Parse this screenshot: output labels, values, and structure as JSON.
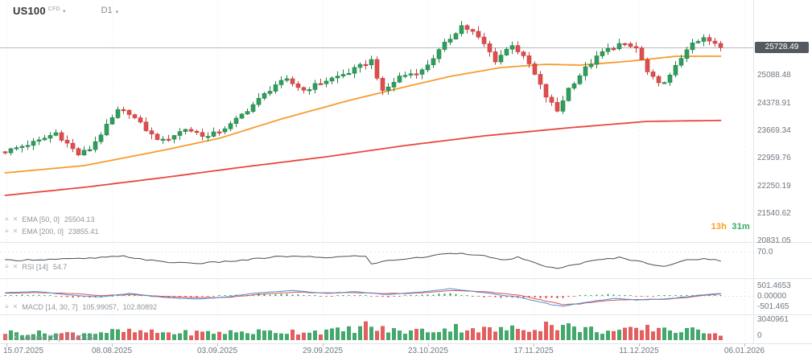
{
  "header": {
    "symbol": "US100",
    "instrument_type": "CFD",
    "timeframe": "D1"
  },
  "price_axis": {
    "current": "25728.49",
    "labels": [
      "25088.48",
      "24378.91",
      "23669.34",
      "22959.76",
      "22250.19",
      "21540.62",
      "20831.05"
    ]
  },
  "panels": {
    "rsi_axis_top": "70.0",
    "macd_axis": [
      "501.4653",
      "0.00000",
      "-501.465"
    ],
    "volume_axis": [
      "3040961",
      "0"
    ]
  },
  "indicator_labels": {
    "ema50": {
      "name": "EMA [50, 0]",
      "value": "25504.13"
    },
    "ema200": {
      "name": "EMA [200, 0]",
      "value": "23855.41"
    },
    "rsi": {
      "name": "RSI [14]",
      "value": "54.7"
    },
    "macd": {
      "name": "MACD [14, 30, 7]",
      "value": "105.99057,  102.80892"
    },
    "volume": {
      "name": "Volume [20]",
      "value": "3 040 961"
    }
  },
  "countdown": {
    "hours": "13h",
    "minutes": "31m"
  },
  "time_axis": [
    "15.07.2025",
    "08.08.2025",
    "03.09.2025",
    "29.09.2025",
    "23.10.2025",
    "17.11.2025",
    "11.12.2025",
    "06.01.2026"
  ],
  "colors": {
    "bull": "#2f9e5c",
    "bull_stroke": "#23824a",
    "bear": "#e04d4d",
    "bear_stroke": "#c03e3e",
    "ema50": "#f79b2e",
    "ema200": "#e8483f",
    "rsi": "#4b4f54",
    "macd_line": "#4f8fd4",
    "macd_signal": "#d9544f",
    "price_line": "#b4b9bd",
    "badge_bg": "#54595f",
    "countdown_h": "#f7a21a",
    "countdown_m": "#36a966",
    "separator": "#e2e5e8",
    "grid": "#f0f2f4",
    "axis_text": "#6f7780"
  },
  "chart_data": {
    "type": "candlestick",
    "symbol": "US100",
    "timeframe": "D1",
    "title": "US100 CFD, D1",
    "bars": 128,
    "current_price": 25728.49,
    "price_axis_values": [
      25728.49,
      25088.48,
      24378.91,
      23669.34,
      22959.76,
      22250.19,
      21540.62,
      20831.05
    ],
    "x_tick_labels": [
      "15.07.2025",
      "08.08.2025",
      "03.09.2025",
      "29.09.2025",
      "23.10.2025",
      "17.11.2025",
      "11.12.2025",
      "06.01.2026"
    ],
    "close_anchors": [
      [
        0,
        23060
      ],
      [
        6,
        23330
      ],
      [
        9,
        23540
      ],
      [
        13,
        22980
      ],
      [
        15,
        23125
      ],
      [
        20,
        24096
      ],
      [
        22,
        24055
      ],
      [
        26,
        23476
      ],
      [
        28,
        23331
      ],
      [
        32,
        23641
      ],
      [
        36,
        23434
      ],
      [
        40,
        23744
      ],
      [
        44,
        24261
      ],
      [
        48,
        24778
      ],
      [
        50,
        24881
      ],
      [
        53,
        24633
      ],
      [
        57,
        24881
      ],
      [
        61,
        25088
      ],
      [
        65,
        25398
      ],
      [
        67,
        24571
      ],
      [
        70,
        24985
      ],
      [
        74,
        25129
      ],
      [
        78,
        25811
      ],
      [
        81,
        26286
      ],
      [
        83,
        26121
      ],
      [
        85,
        25811
      ],
      [
        87,
        25398
      ],
      [
        90,
        25811
      ],
      [
        93,
        25294
      ],
      [
        96,
        24468
      ],
      [
        98,
        24096
      ],
      [
        100,
        24674
      ],
      [
        103,
        25191
      ],
      [
        106,
        25604
      ],
      [
        109,
        25811
      ],
      [
        112,
        25708
      ],
      [
        114,
        25088
      ],
      [
        116,
        24778
      ],
      [
        118,
        24985
      ],
      [
        121,
        25708
      ],
      [
        124,
        25956
      ],
      [
        127,
        25728.49
      ]
    ],
    "ema50_anchors": [
      [
        0,
        22510
      ],
      [
        14,
        22696
      ],
      [
        28,
        23088
      ],
      [
        38,
        23397
      ],
      [
        49,
        23892
      ],
      [
        61,
        24367
      ],
      [
        71,
        24718
      ],
      [
        79,
        24986
      ],
      [
        88,
        25213
      ],
      [
        96,
        25295
      ],
      [
        102,
        25275
      ],
      [
        111,
        25378
      ],
      [
        119,
        25501
      ],
      [
        127,
        25504.13
      ]
    ],
    "ema200_anchors": [
      [
        0,
        21933
      ],
      [
        14,
        22139
      ],
      [
        28,
        22387
      ],
      [
        42,
        22655
      ],
      [
        57,
        22923
      ],
      [
        71,
        23212
      ],
      [
        85,
        23459
      ],
      [
        100,
        23666
      ],
      [
        114,
        23831
      ],
      [
        127,
        23855.41
      ]
    ],
    "rsi": {
      "period": 14,
      "current": 54.7,
      "level_shown": 70.0,
      "anchors": [
        [
          0,
          55
        ],
        [
          14,
          58
        ],
        [
          21,
          62
        ],
        [
          28,
          52
        ],
        [
          35,
          50
        ],
        [
          42,
          55
        ],
        [
          49,
          62
        ],
        [
          57,
          60
        ],
        [
          64,
          63
        ],
        [
          65,
          48
        ],
        [
          68,
          55
        ],
        [
          74,
          60
        ],
        [
          79,
          68
        ],
        [
          84,
          65
        ],
        [
          88,
          55
        ],
        [
          91,
          60
        ],
        [
          94,
          50
        ],
        [
          98,
          40
        ],
        [
          101,
          48
        ],
        [
          105,
          55
        ],
        [
          109,
          60
        ],
        [
          114,
          50
        ],
        [
          117,
          45
        ],
        [
          121,
          55
        ],
        [
          124,
          58
        ],
        [
          127,
          54.7
        ]
      ]
    },
    "macd": {
      "params": [
        14,
        30,
        7
      ],
      "current_macd": 105.99057,
      "current_signal": 102.80892,
      "axis_values": [
        501.4653,
        0.0,
        -501.465
      ],
      "line_anchors": [
        [
          0,
          150
        ],
        [
          5,
          220
        ],
        [
          11,
          60
        ],
        [
          17,
          -60
        ],
        [
          22,
          120
        ],
        [
          28,
          -80
        ],
        [
          34,
          -150
        ],
        [
          39,
          -60
        ],
        [
          45,
          150
        ],
        [
          51,
          250
        ],
        [
          57,
          120
        ],
        [
          62,
          200
        ],
        [
          68,
          60
        ],
        [
          74,
          200
        ],
        [
          79,
          350
        ],
        [
          85,
          150
        ],
        [
          91,
          -60
        ],
        [
          97,
          -420
        ],
        [
          99,
          -500
        ],
        [
          102,
          -350
        ],
        [
          108,
          -120
        ],
        [
          112,
          -200
        ],
        [
          117,
          -150
        ],
        [
          121,
          -40
        ],
        [
          124,
          60
        ],
        [
          127,
          105.99
        ]
      ],
      "signal_anchors": [
        [
          0,
          120
        ],
        [
          5,
          160
        ],
        [
          11,
          120
        ],
        [
          17,
          20
        ],
        [
          22,
          60
        ],
        [
          28,
          -20
        ],
        [
          34,
          -90
        ],
        [
          39,
          -80
        ],
        [
          45,
          60
        ],
        [
          51,
          180
        ],
        [
          57,
          140
        ],
        [
          62,
          160
        ],
        [
          68,
          110
        ],
        [
          74,
          140
        ],
        [
          79,
          260
        ],
        [
          85,
          200
        ],
        [
          91,
          40
        ],
        [
          97,
          -300
        ],
        [
          99,
          -420
        ],
        [
          102,
          -380
        ],
        [
          108,
          -200
        ],
        [
          112,
          -180
        ],
        [
          117,
          -160
        ],
        [
          121,
          -80
        ],
        [
          124,
          20
        ],
        [
          127,
          102.81
        ]
      ]
    },
    "volume": {
      "axis_max": 3040961,
      "profile_anchors": [
        [
          0,
          0.45
        ],
        [
          10,
          0.35
        ],
        [
          20,
          0.5
        ],
        [
          30,
          0.4
        ],
        [
          40,
          0.45
        ],
        [
          50,
          0.5
        ],
        [
          60,
          0.55
        ],
        [
          64,
          0.9
        ],
        [
          66,
          0.7
        ],
        [
          70,
          0.5
        ],
        [
          76,
          0.6
        ],
        [
          81,
          0.8
        ],
        [
          86,
          0.6
        ],
        [
          92,
          0.7
        ],
        [
          96,
          1.0
        ],
        [
          98,
          0.95
        ],
        [
          102,
          0.7
        ],
        [
          108,
          0.5
        ],
        [
          112,
          0.6
        ],
        [
          116,
          0.8
        ],
        [
          120,
          0.5
        ],
        [
          124,
          0.6
        ],
        [
          127,
          0.35
        ]
      ]
    }
  }
}
